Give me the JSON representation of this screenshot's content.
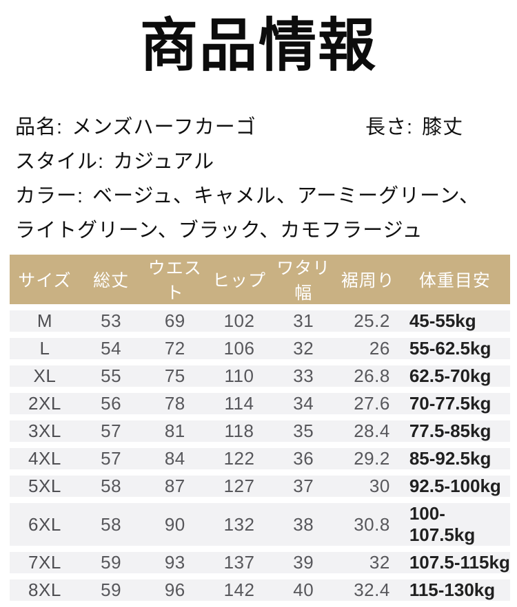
{
  "page": {
    "title": "商品情報"
  },
  "product_info": {
    "name_label": "品名:",
    "name_value": "メンズハーフカーゴ",
    "length_label": "長さ:",
    "length_value": "膝丈",
    "style_label": "スタイル:",
    "style_value": "カジュアル",
    "color_label": "カラー:",
    "color_value_line1": "ベージュ、キャメル、アーミーグリーン、",
    "color_value_line2": "ライトグリーン、ブラック、カモフラージュ"
  },
  "size_table": {
    "headers": [
      "サイズ",
      "総丈",
      "ウエスト",
      "ヒップ",
      "ワタリ幅",
      "裾周り",
      "体重目安"
    ],
    "rows": [
      [
        "M",
        "53",
        "69",
        "102",
        "31",
        "25.2",
        "45-55kg"
      ],
      [
        "L",
        "54",
        "72",
        "106",
        "32",
        "26",
        "55-62.5kg"
      ],
      [
        "XL",
        "55",
        "75",
        "110",
        "33",
        "26.8",
        "62.5-70kg"
      ],
      [
        "2XL",
        "56",
        "78",
        "114",
        "34",
        "27.6",
        "70-77.5kg"
      ],
      [
        "3XL",
        "57",
        "81",
        "118",
        "35",
        "28.4",
        "77.5-85kg"
      ],
      [
        "4XL",
        "57",
        "84",
        "122",
        "36",
        "29.2",
        "85-92.5kg"
      ],
      [
        "5XL",
        "58",
        "87",
        "127",
        "37",
        "30",
        "92.5-100kg"
      ],
      [
        "6XL",
        "58",
        "90",
        "132",
        "38",
        "30.8",
        "100-107.5kg"
      ],
      [
        "7XL",
        "59",
        "93",
        "137",
        "39",
        "32",
        "107.5-115kg"
      ],
      [
        "8XL",
        "59",
        "96",
        "142",
        "40",
        "32.4",
        "115-130kg"
      ]
    ]
  },
  "colors": {
    "header_bg": "#c9b183",
    "row_bg": "#f2f2f4"
  }
}
